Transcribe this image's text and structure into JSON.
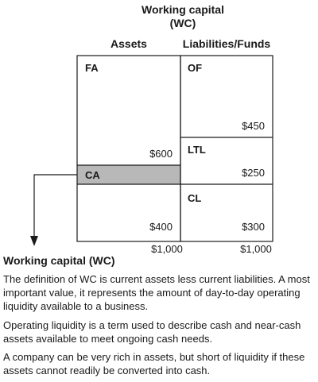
{
  "header": {
    "title_line1": "Working capital",
    "title_line2": "(WC)",
    "assets_label": "Assets",
    "liabilities_label": "Liabilities/Funds"
  },
  "assets": {
    "fa_label": "FA",
    "fa_value": "$600",
    "ca_label": "CA",
    "ca_value": "$400",
    "total": "$1,000"
  },
  "liabilities": {
    "of_label": "OF",
    "of_value": "$450",
    "ltl_label": "LTL",
    "ltl_value": "$250",
    "cl_label": "CL",
    "cl_value": "$300",
    "total": "$1,000"
  },
  "colors": {
    "ca_band": "#b8b8b8",
    "line": "#1a1a1a"
  },
  "caption": {
    "title": "Working capital (WC)",
    "paragraphs": [
      "The definition of WC is current assets less current liabilities. A most important value, it represents the amount of day-to-day operating liquidity available to a business.",
      "Operating liquidity is a term used to describe cash and near-cash assets available to meet ongoing cash needs.",
      "A company can be very rich in assets, but short of liquidity if these assets cannot readily be converted into cash."
    ]
  }
}
